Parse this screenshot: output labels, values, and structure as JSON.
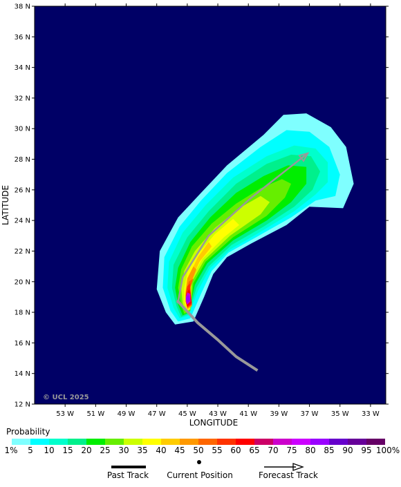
{
  "map": {
    "xlabel": "LONGITUDE",
    "ylabel": "LATITUDE",
    "lat_range": [
      12,
      38
    ],
    "lon_range": [
      55,
      32
    ],
    "lat_ticks": [
      "12 N",
      "14 N",
      "16 N",
      "18 N",
      "20 N",
      "22 N",
      "24 N",
      "26 N",
      "28 N",
      "30 N",
      "32 N",
      "34 N",
      "36 N",
      "38 N"
    ],
    "lon_ticks": [
      "53 W",
      "51 W",
      "49 W",
      "47 W",
      "45 W",
      "43 W",
      "41 W",
      "39 W",
      "37 W",
      "35 W",
      "33 W"
    ],
    "copyright": "© UCL 2025",
    "ocean_color": "#000066"
  },
  "legend": {
    "title": "Probability",
    "labels": [
      "1%",
      "5",
      "10",
      "15",
      "20",
      "25",
      "30",
      "35",
      "40",
      "45",
      "50",
      "55",
      "60",
      "65",
      "70",
      "75",
      "80",
      "85",
      "90",
      "95",
      "100%"
    ],
    "colors": [
      "#7fffff",
      "#00ffff",
      "#00ffcc",
      "#00f08c",
      "#00ee00",
      "#66ee00",
      "#ccff00",
      "#ffff00",
      "#ffcc00",
      "#ff9900",
      "#ff6600",
      "#ff3300",
      "#ff0000",
      "#cc0066",
      "#cc00cc",
      "#cc00ff",
      "#9900ff",
      "#6600cc",
      "#660099",
      "#660066"
    ]
  },
  "key": {
    "past_track": "Past Track",
    "current_position": "Current Position",
    "forecast_track": "Forecast Track"
  },
  "tracks": {
    "past": [
      [
        -40.4,
        14.2
      ],
      [
        -41.8,
        15.1
      ],
      [
        -43.0,
        16.2
      ],
      [
        -44.3,
        17.3
      ],
      [
        -45.6,
        18.7
      ]
    ],
    "forecast": [
      [
        -45.6,
        18.7
      ],
      [
        -45.3,
        20.3
      ],
      [
        -43.6,
        23.0
      ],
      [
        -40.8,
        25.5
      ],
      [
        -37.1,
        28.4
      ]
    ],
    "track_color": "#999999"
  },
  "probability_field": [
    {
      "level": 1,
      "points": [
        [
          -45.8,
          17.2
        ],
        [
          -44.6,
          17.4
        ],
        [
          -43.9,
          19.0
        ],
        [
          -43.3,
          20.5
        ],
        [
          -42.4,
          21.6
        ],
        [
          -40.8,
          22.5
        ],
        [
          -38.5,
          23.7
        ],
        [
          -37.0,
          24.9
        ],
        [
          -34.8,
          24.8
        ],
        [
          -34.1,
          26.4
        ],
        [
          -34.6,
          28.8
        ],
        [
          -35.6,
          30.1
        ],
        [
          -37.2,
          31.0
        ],
        [
          -38.7,
          30.9
        ],
        [
          -40.0,
          29.6
        ],
        [
          -42.4,
          27.6
        ],
        [
          -44.1,
          25.8
        ],
        [
          -45.6,
          24.2
        ],
        [
          -46.8,
          22.0
        ],
        [
          -47.0,
          19.5
        ],
        [
          -46.4,
          18.0
        ]
      ]
    },
    {
      "level": 5,
      "points": [
        [
          -45.6,
          17.4
        ],
        [
          -44.8,
          17.6
        ],
        [
          -44.1,
          19.2
        ],
        [
          -43.4,
          20.7
        ],
        [
          -42.3,
          21.9
        ],
        [
          -40.5,
          22.9
        ],
        [
          -38.2,
          24.2
        ],
        [
          -36.6,
          25.3
        ],
        [
          -35.3,
          25.6
        ],
        [
          -35.0,
          27.0
        ],
        [
          -35.7,
          28.8
        ],
        [
          -37.0,
          29.8
        ],
        [
          -38.5,
          29.9
        ],
        [
          -40.2,
          28.8
        ],
        [
          -42.4,
          27.1
        ],
        [
          -44.1,
          25.3
        ],
        [
          -45.5,
          23.6
        ],
        [
          -46.5,
          21.6
        ],
        [
          -46.6,
          19.6
        ],
        [
          -46.1,
          18.1
        ]
      ]
    },
    {
      "level": 10,
      "points": [
        [
          -45.5,
          17.6
        ],
        [
          -44.9,
          17.8
        ],
        [
          -44.3,
          19.4
        ],
        [
          -43.5,
          20.9
        ],
        [
          -42.2,
          22.1
        ],
        [
          -40.3,
          23.2
        ],
        [
          -38.0,
          24.6
        ],
        [
          -36.6,
          25.7
        ],
        [
          -35.8,
          26.5
        ],
        [
          -35.8,
          27.8
        ],
        [
          -36.6,
          28.7
        ],
        [
          -38.0,
          28.9
        ],
        [
          -39.8,
          28.2
        ],
        [
          -42.0,
          26.8
        ],
        [
          -43.8,
          25.0
        ],
        [
          -45.3,
          23.2
        ],
        [
          -46.2,
          21.3
        ],
        [
          -46.3,
          19.6
        ],
        [
          -45.9,
          18.3
        ]
      ]
    },
    {
      "level": 15,
      "points": [
        [
          -45.4,
          17.7
        ],
        [
          -44.9,
          17.9
        ],
        [
          -44.4,
          19.6
        ],
        [
          -43.6,
          21.0
        ],
        [
          -42.1,
          22.4
        ],
        [
          -40.0,
          23.6
        ],
        [
          -38.0,
          24.9
        ],
        [
          -36.8,
          26.0
        ],
        [
          -36.3,
          27.2
        ],
        [
          -36.9,
          28.2
        ],
        [
          -38.2,
          28.3
        ],
        [
          -39.8,
          27.7
        ],
        [
          -41.8,
          26.4
        ],
        [
          -43.6,
          24.6
        ],
        [
          -45.0,
          22.9
        ],
        [
          -45.9,
          21.1
        ],
        [
          -46.0,
          19.6
        ],
        [
          -45.7,
          18.4
        ]
      ]
    },
    {
      "level": 20,
      "points": [
        [
          -45.3,
          17.8
        ],
        [
          -44.9,
          18.0
        ],
        [
          -44.5,
          19.8
        ],
        [
          -43.7,
          21.2
        ],
        [
          -42.0,
          22.7
        ],
        [
          -39.8,
          24.0
        ],
        [
          -38.2,
          25.2
        ],
        [
          -37.2,
          26.4
        ],
        [
          -37.2,
          27.5
        ],
        [
          -38.4,
          27.6
        ],
        [
          -40.0,
          26.9
        ],
        [
          -41.8,
          25.8
        ],
        [
          -43.5,
          24.2
        ],
        [
          -44.8,
          22.6
        ],
        [
          -45.6,
          20.9
        ],
        [
          -45.8,
          19.6
        ],
        [
          -45.6,
          18.5
        ]
      ]
    },
    {
      "level": 25,
      "points": [
        [
          -45.2,
          17.9
        ],
        [
          -44.8,
          18.1
        ],
        [
          -44.6,
          19.9
        ],
        [
          -43.8,
          21.3
        ],
        [
          -42.0,
          22.9
        ],
        [
          -39.8,
          24.3
        ],
        [
          -38.6,
          25.5
        ],
        [
          -38.2,
          26.4
        ],
        [
          -38.8,
          26.7
        ],
        [
          -40.2,
          26.1
        ],
        [
          -41.8,
          25.1
        ],
        [
          -43.4,
          23.8
        ],
        [
          -44.7,
          22.3
        ],
        [
          -45.4,
          20.8
        ],
        [
          -45.6,
          19.6
        ],
        [
          -45.4,
          18.5
        ]
      ]
    },
    {
      "level": 30,
      "points": [
        [
          -45.1,
          18.0
        ],
        [
          -44.8,
          18.2
        ],
        [
          -44.7,
          20.0
        ],
        [
          -43.9,
          21.4
        ],
        [
          -42.2,
          23.0
        ],
        [
          -40.2,
          24.4
        ],
        [
          -39.6,
          25.2
        ],
        [
          -40.2,
          25.6
        ],
        [
          -41.6,
          24.8
        ],
        [
          -43.2,
          23.5
        ],
        [
          -44.5,
          22.0
        ],
        [
          -45.2,
          20.7
        ],
        [
          -45.4,
          19.6
        ],
        [
          -45.3,
          18.6
        ]
      ]
    },
    {
      "level": 35,
      "points": [
        [
          -45.0,
          18.1
        ],
        [
          -44.8,
          18.3
        ],
        [
          -44.8,
          20.1
        ],
        [
          -44.0,
          21.5
        ],
        [
          -42.6,
          22.9
        ],
        [
          -41.6,
          23.7
        ],
        [
          -42.0,
          24.1
        ],
        [
          -43.2,
          23.1
        ],
        [
          -44.4,
          21.7
        ],
        [
          -45.0,
          20.6
        ],
        [
          -45.2,
          19.6
        ],
        [
          -45.2,
          18.7
        ]
      ]
    },
    {
      "level": 40,
      "points": [
        [
          -45.0,
          18.2
        ],
        [
          -44.7,
          18.4
        ],
        [
          -44.8,
          20.0
        ],
        [
          -44.2,
          21.3
        ],
        [
          -43.4,
          22.3
        ],
        [
          -43.6,
          22.6
        ],
        [
          -44.3,
          21.6
        ],
        [
          -44.9,
          20.4
        ],
        [
          -45.1,
          19.5
        ],
        [
          -45.1,
          18.7
        ]
      ]
    },
    {
      "level": 45,
      "points": [
        [
          -45.0,
          18.2
        ],
        [
          -44.7,
          18.4
        ],
        [
          -44.8,
          19.8
        ],
        [
          -44.4,
          20.8
        ],
        [
          -44.6,
          21.0
        ],
        [
          -45.0,
          20.2
        ],
        [
          -45.1,
          19.4
        ],
        [
          -45.1,
          18.7
        ]
      ]
    },
    {
      "level": 50,
      "points": [
        [
          -45.0,
          18.3
        ],
        [
          -44.7,
          18.5
        ],
        [
          -44.8,
          19.6
        ],
        [
          -44.6,
          20.2
        ],
        [
          -44.9,
          20.0
        ],
        [
          -45.1,
          19.3
        ],
        [
          -45.1,
          18.7
        ]
      ]
    },
    {
      "level": 55,
      "points": [
        [
          -45.0,
          18.3
        ],
        [
          -44.7,
          18.5
        ],
        [
          -44.8,
          19.4
        ],
        [
          -44.8,
          19.9
        ],
        [
          -45.0,
          19.7
        ],
        [
          -45.1,
          19.2
        ],
        [
          -45.1,
          18.7
        ]
      ]
    },
    {
      "level": 60,
      "points": [
        [
          -45.0,
          18.4
        ],
        [
          -44.7,
          18.6
        ],
        [
          -44.8,
          19.3
        ],
        [
          -44.9,
          19.5
        ],
        [
          -45.1,
          19.1
        ],
        [
          -45.1,
          18.7
        ]
      ]
    },
    {
      "level": 70,
      "points": [
        [
          -45.0,
          18.5
        ],
        [
          -44.8,
          18.7
        ],
        [
          -44.8,
          19.2
        ],
        [
          -45.0,
          19.3
        ],
        [
          -45.1,
          19.0
        ],
        [
          -45.1,
          18.7
        ]
      ]
    },
    {
      "level": 80,
      "points": [
        [
          -45.0,
          18.6
        ],
        [
          -44.8,
          18.8
        ],
        [
          -44.9,
          19.1
        ],
        [
          -45.0,
          19.1
        ],
        [
          -45.1,
          18.9
        ]
      ]
    }
  ]
}
